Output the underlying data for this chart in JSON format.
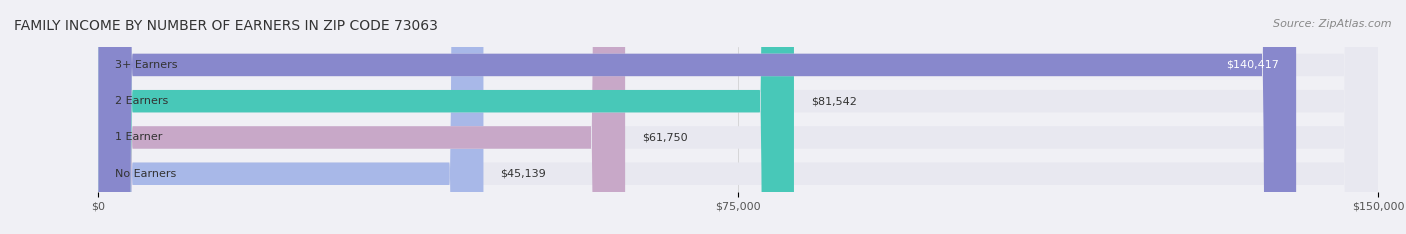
{
  "title": "FAMILY INCOME BY NUMBER OF EARNERS IN ZIP CODE 73063",
  "source": "Source: ZipAtlas.com",
  "categories": [
    "No Earners",
    "1 Earner",
    "2 Earners",
    "3+ Earners"
  ],
  "values": [
    45139,
    61750,
    81542,
    140417
  ],
  "labels": [
    "$45,139",
    "$61,750",
    "$81,542",
    "$140,417"
  ],
  "bar_colors": [
    "#a8b8e8",
    "#c8a8c8",
    "#48c8b8",
    "#8888cc"
  ],
  "xlim": [
    0,
    150000
  ],
  "xtick_values": [
    0,
    75000,
    150000
  ],
  "xtick_labels": [
    "$0",
    "$75,000",
    "$150,000"
  ],
  "background_color": "#f0f0f5",
  "bar_bg_color": "#e8e8f0",
  "title_fontsize": 10,
  "source_fontsize": 8,
  "label_fontsize": 8,
  "category_fontsize": 8
}
